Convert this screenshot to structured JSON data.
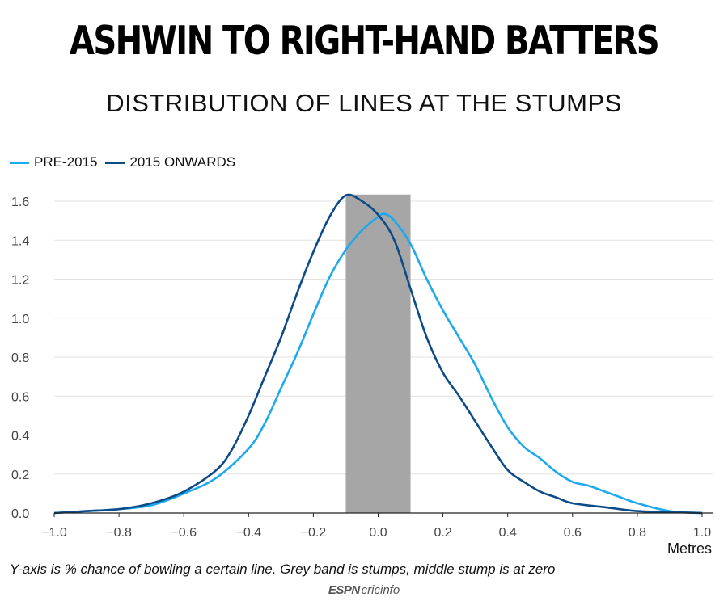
{
  "title": "ASHWIN TO RIGHT-HAND BATTERS",
  "subtitle": "DISTRIBUTION OF LINES AT THE STUMPS",
  "caption": "Y-axis is % chance of bowling a certain line. Grey band is stumps, middle stump is at zero",
  "logo": {
    "brand": "ESPN",
    "name": "cricinfo"
  },
  "colors": {
    "pre2015": "#1ca9ee",
    "onwards": "#0d4b86",
    "band": "#a6a6a6",
    "grid": "#e2e2e2"
  },
  "chart_data": {
    "type": "line",
    "title": "ASHWIN TO RIGHT-HAND BATTERS",
    "subtitle": "DISTRIBUTION OF LINES AT THE STUMPS",
    "xlabel": "Metres",
    "ylabel": "",
    "xlim": [
      -1.0,
      1.0
    ],
    "ylim": [
      0,
      1.6
    ],
    "xticks": [
      "-1.0",
      "-0.8",
      "-0.6",
      "-0.4",
      "-0.2",
      "0.0",
      "0.2",
      "0.4",
      "0.6",
      "0.8",
      "1.0"
    ],
    "yticks": [
      "0.0",
      "0.2",
      "0.4",
      "0.6",
      "0.8",
      "1.0",
      "1.2",
      "1.4",
      "1.6"
    ],
    "grid": true,
    "legend_position": "top-left",
    "stumps_band": [
      -0.1,
      0.1
    ],
    "series": [
      {
        "name": "PRE-2015",
        "color": "#1ca9ee",
        "points": [
          [
            -1.0,
            0.0
          ],
          [
            -0.9,
            0.01
          ],
          [
            -0.8,
            0.02
          ],
          [
            -0.7,
            0.04
          ],
          [
            -0.6,
            0.1
          ],
          [
            -0.5,
            0.18
          ],
          [
            -0.4,
            0.33
          ],
          [
            -0.35,
            0.46
          ],
          [
            -0.3,
            0.64
          ],
          [
            -0.25,
            0.82
          ],
          [
            -0.2,
            1.02
          ],
          [
            -0.15,
            1.21
          ],
          [
            -0.1,
            1.35
          ],
          [
            -0.05,
            1.45
          ],
          [
            0.0,
            1.52
          ],
          [
            0.02,
            1.535
          ],
          [
            0.05,
            1.5
          ],
          [
            0.1,
            1.38
          ],
          [
            0.15,
            1.2
          ],
          [
            0.2,
            1.04
          ],
          [
            0.25,
            0.9
          ],
          [
            0.3,
            0.76
          ],
          [
            0.35,
            0.59
          ],
          [
            0.4,
            0.44
          ],
          [
            0.45,
            0.34
          ],
          [
            0.5,
            0.28
          ],
          [
            0.55,
            0.21
          ],
          [
            0.6,
            0.16
          ],
          [
            0.65,
            0.14
          ],
          [
            0.7,
            0.11
          ],
          [
            0.75,
            0.08
          ],
          [
            0.8,
            0.05
          ],
          [
            0.9,
            0.01
          ],
          [
            1.0,
            0.0
          ]
        ]
      },
      {
        "name": "2015 ONWARDS",
        "color": "#0d4b86",
        "points": [
          [
            -1.0,
            0.0
          ],
          [
            -0.9,
            0.01
          ],
          [
            -0.8,
            0.02
          ],
          [
            -0.7,
            0.05
          ],
          [
            -0.6,
            0.11
          ],
          [
            -0.5,
            0.22
          ],
          [
            -0.45,
            0.33
          ],
          [
            -0.4,
            0.5
          ],
          [
            -0.35,
            0.7
          ],
          [
            -0.3,
            0.9
          ],
          [
            -0.25,
            1.13
          ],
          [
            -0.2,
            1.34
          ],
          [
            -0.15,
            1.52
          ],
          [
            -0.1,
            1.63
          ],
          [
            -0.05,
            1.6
          ],
          [
            0.0,
            1.53
          ],
          [
            0.05,
            1.4
          ],
          [
            0.1,
            1.15
          ],
          [
            0.15,
            0.9
          ],
          [
            0.2,
            0.72
          ],
          [
            0.25,
            0.6
          ],
          [
            0.3,
            0.47
          ],
          [
            0.35,
            0.34
          ],
          [
            0.4,
            0.22
          ],
          [
            0.45,
            0.16
          ],
          [
            0.5,
            0.11
          ],
          [
            0.55,
            0.08
          ],
          [
            0.6,
            0.05
          ],
          [
            0.7,
            0.03
          ],
          [
            0.8,
            0.01
          ],
          [
            0.9,
            0.005
          ],
          [
            1.0,
            0.0
          ]
        ]
      }
    ]
  }
}
